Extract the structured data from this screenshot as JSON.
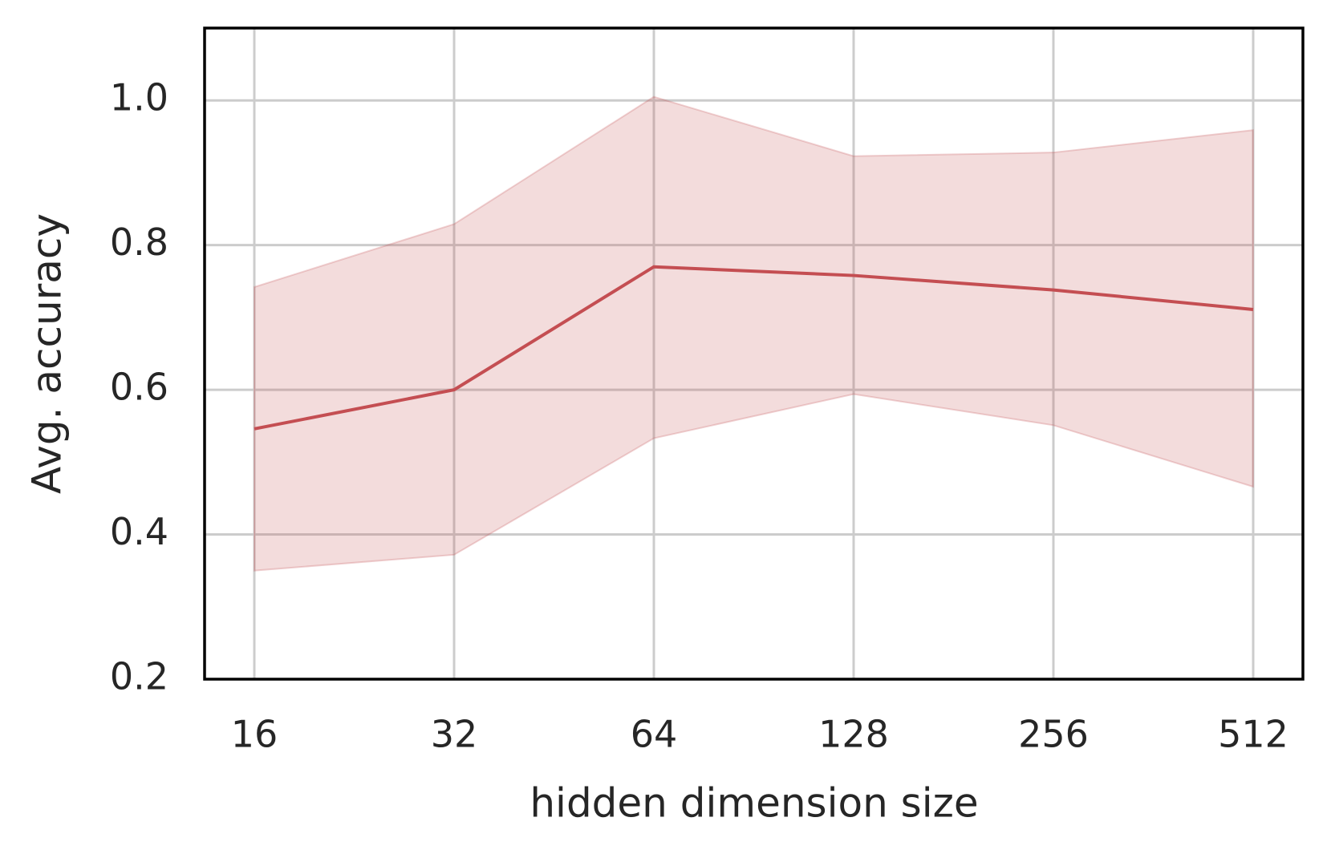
{
  "chart_data": {
    "type": "line",
    "xlabel": "hidden dimension size",
    "ylabel": "Avg. accuracy",
    "categories": [
      "16",
      "32",
      "64",
      "128",
      "256",
      "512"
    ],
    "series": [
      {
        "color": "#c44e52",
        "values": [
          0.546,
          0.6,
          0.77,
          0.758,
          0.738,
          0.711
        ],
        "lower": [
          0.35,
          0.372,
          0.533,
          0.594,
          0.551,
          0.466
        ],
        "upper": [
          0.742,
          0.829,
          1.005,
          0.923,
          0.928,
          0.959
        ]
      }
    ],
    "ylim": [
      0.2,
      1.1
    ],
    "yticks": [
      {
        "value": 0.2,
        "label": "0.2"
      },
      {
        "value": 0.4,
        "label": "0.4"
      },
      {
        "value": 0.6,
        "label": "0.6"
      },
      {
        "value": 0.8,
        "label": "0.8"
      },
      {
        "value": 1.0,
        "label": "1.0"
      }
    ],
    "grid": true
  }
}
